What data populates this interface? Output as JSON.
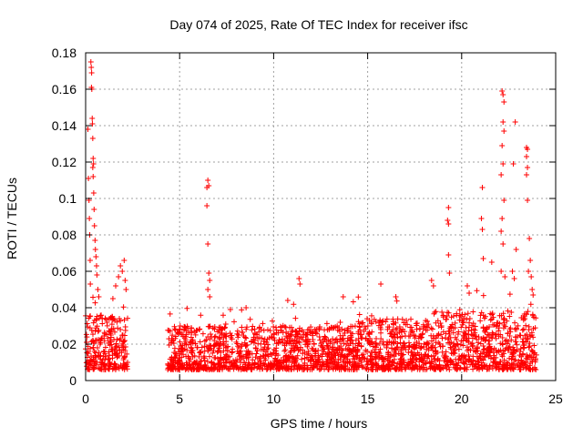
{
  "chart_data": {
    "type": "scatter",
    "title": "Day 074 of 2025, Rate Of TEC Index for receiver ifsc",
    "xlabel": "GPS time / hours",
    "ylabel": "ROTI / TECUs",
    "xlim": [
      0,
      25
    ],
    "ylim": [
      0,
      0.18
    ],
    "xticks": [
      0,
      5,
      10,
      15,
      20,
      25
    ],
    "xtick_labels": [
      "0",
      "5",
      "10",
      "15",
      "20",
      "25"
    ],
    "yticks": [
      0,
      0.02,
      0.04,
      0.06,
      0.08,
      0.1,
      0.12,
      0.14,
      0.16,
      0.18
    ],
    "ytick_labels": [
      "0",
      "0.02",
      "0.04",
      "0.06",
      "0.08",
      "0.1",
      "0.12",
      "0.14",
      "0.16",
      "0.18"
    ],
    "grid": true,
    "marker": "+",
    "color": "#ff0000",
    "coverage_gaps_hours": [
      [
        2.25,
        4.35
      ]
    ],
    "series": [
      {
        "name": "ROTI",
        "band_profile": [
          {
            "from": 0.0,
            "to": 2.25,
            "base_max": 0.03
          },
          {
            "from": 4.35,
            "to": 7.0,
            "base_max": 0.024
          },
          {
            "from": 7.0,
            "to": 14.5,
            "base_max": 0.024
          },
          {
            "from": 14.5,
            "to": 18.5,
            "base_max": 0.028
          },
          {
            "from": 18.5,
            "to": 24.0,
            "base_max": 0.032
          }
        ],
        "notable_points": [
          {
            "x": 0.12,
            "y": 0.138
          },
          {
            "x": 0.15,
            "y": 0.111
          },
          {
            "x": 0.18,
            "y": 0.099
          },
          {
            "x": 0.2,
            "y": 0.089
          },
          {
            "x": 0.22,
            "y": 0.08
          },
          {
            "x": 0.24,
            "y": 0.066
          },
          {
            "x": 0.25,
            "y": 0.053
          },
          {
            "x": 0.28,
            "y": 0.175
          },
          {
            "x": 0.3,
            "y": 0.172
          },
          {
            "x": 0.32,
            "y": 0.169
          },
          {
            "x": 0.31,
            "y": 0.161
          },
          {
            "x": 0.33,
            "y": 0.16
          },
          {
            "x": 0.35,
            "y": 0.144
          },
          {
            "x": 0.36,
            "y": 0.141
          },
          {
            "x": 0.38,
            "y": 0.133
          },
          {
            "x": 0.4,
            "y": 0.122
          },
          {
            "x": 0.42,
            "y": 0.119
          },
          {
            "x": 0.38,
            "y": 0.117
          },
          {
            "x": 0.4,
            "y": 0.112
          },
          {
            "x": 0.43,
            "y": 0.103
          },
          {
            "x": 0.45,
            "y": 0.094
          },
          {
            "x": 0.47,
            "y": 0.085
          },
          {
            "x": 0.5,
            "y": 0.077
          },
          {
            "x": 0.52,
            "y": 0.072
          },
          {
            "x": 0.55,
            "y": 0.068
          },
          {
            "x": 0.58,
            "y": 0.063
          },
          {
            "x": 0.6,
            "y": 0.058
          },
          {
            "x": 0.65,
            "y": 0.05
          },
          {
            "x": 0.7,
            "y": 0.046
          },
          {
            "x": 1.45,
            "y": 0.045
          },
          {
            "x": 1.6,
            "y": 0.052
          },
          {
            "x": 1.75,
            "y": 0.057
          },
          {
            "x": 1.85,
            "y": 0.063
          },
          {
            "x": 1.95,
            "y": 0.06
          },
          {
            "x": 2.05,
            "y": 0.066
          },
          {
            "x": 2.1,
            "y": 0.055
          },
          {
            "x": 2.15,
            "y": 0.05
          },
          {
            "x": 6.45,
            "y": 0.106
          },
          {
            "x": 6.5,
            "y": 0.11
          },
          {
            "x": 6.55,
            "y": 0.107
          },
          {
            "x": 6.45,
            "y": 0.096
          },
          {
            "x": 6.5,
            "y": 0.075
          },
          {
            "x": 6.55,
            "y": 0.059
          },
          {
            "x": 6.6,
            "y": 0.055
          },
          {
            "x": 6.5,
            "y": 0.05
          },
          {
            "x": 6.6,
            "y": 0.046
          },
          {
            "x": 7.7,
            "y": 0.039
          },
          {
            "x": 11.35,
            "y": 0.056
          },
          {
            "x": 11.4,
            "y": 0.053
          },
          {
            "x": 10.75,
            "y": 0.044
          },
          {
            "x": 13.7,
            "y": 0.046
          },
          {
            "x": 15.7,
            "y": 0.053
          },
          {
            "x": 16.5,
            "y": 0.046
          },
          {
            "x": 18.4,
            "y": 0.055
          },
          {
            "x": 18.5,
            "y": 0.052
          },
          {
            "x": 19.3,
            "y": 0.095
          },
          {
            "x": 19.25,
            "y": 0.088
          },
          {
            "x": 19.3,
            "y": 0.086
          },
          {
            "x": 19.3,
            "y": 0.069
          },
          {
            "x": 19.35,
            "y": 0.059
          },
          {
            "x": 20.3,
            "y": 0.052
          },
          {
            "x": 20.4,
            "y": 0.048
          },
          {
            "x": 21.1,
            "y": 0.106
          },
          {
            "x": 21.05,
            "y": 0.089
          },
          {
            "x": 21.1,
            "y": 0.083
          },
          {
            "x": 21.15,
            "y": 0.067
          },
          {
            "x": 21.6,
            "y": 0.065
          },
          {
            "x": 22.15,
            "y": 0.159
          },
          {
            "x": 22.2,
            "y": 0.157
          },
          {
            "x": 22.25,
            "y": 0.153
          },
          {
            "x": 22.2,
            "y": 0.142
          },
          {
            "x": 22.25,
            "y": 0.137
          },
          {
            "x": 22.15,
            "y": 0.129
          },
          {
            "x": 22.2,
            "y": 0.119
          },
          {
            "x": 22.1,
            "y": 0.113
          },
          {
            "x": 22.25,
            "y": 0.099
          },
          {
            "x": 22.15,
            "y": 0.089
          },
          {
            "x": 22.1,
            "y": 0.082
          },
          {
            "x": 22.2,
            "y": 0.075
          },
          {
            "x": 22.1,
            "y": 0.06
          },
          {
            "x": 22.3,
            "y": 0.057
          },
          {
            "x": 22.85,
            "y": 0.142
          },
          {
            "x": 22.75,
            "y": 0.119
          },
          {
            "x": 22.9,
            "y": 0.072
          },
          {
            "x": 22.7,
            "y": 0.06
          },
          {
            "x": 22.8,
            "y": 0.056
          },
          {
            "x": 23.45,
            "y": 0.128
          },
          {
            "x": 23.5,
            "y": 0.127
          },
          {
            "x": 23.45,
            "y": 0.123
          },
          {
            "x": 23.5,
            "y": 0.117
          },
          {
            "x": 23.45,
            "y": 0.113
          },
          {
            "x": 23.5,
            "y": 0.099
          },
          {
            "x": 23.6,
            "y": 0.078
          },
          {
            "x": 23.65,
            "y": 0.066
          },
          {
            "x": 23.55,
            "y": 0.06
          },
          {
            "x": 23.7,
            "y": 0.057
          },
          {
            "x": 23.75,
            "y": 0.05
          },
          {
            "x": 23.8,
            "y": 0.047
          }
        ]
      }
    ]
  }
}
